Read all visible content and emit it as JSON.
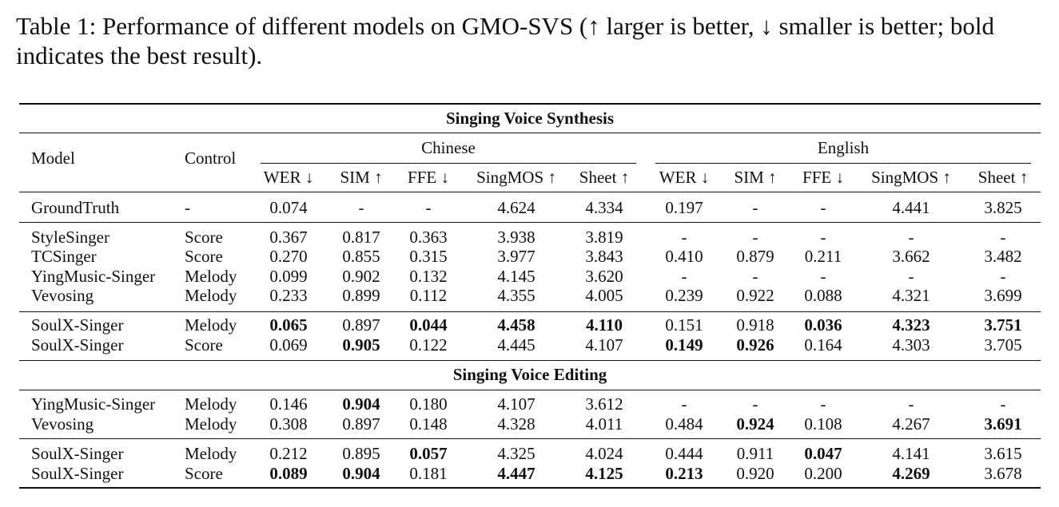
{
  "caption": "Table 1: Performance of different models on GMO-SVS (↑ larger is better, ↓ smaller is better; bold indicates the best result).",
  "table": {
    "section_synthesis": "Singing Voice Synthesis",
    "section_editing": "Singing Voice Editing",
    "header_model": "Model",
    "header_control": "Control",
    "lang_groups": [
      "Chinese",
      "English"
    ],
    "metrics": [
      "WER ↓",
      "SIM ↑",
      "FFE ↓",
      "SingMOS ↑",
      "Sheet ↑",
      "WER ↓",
      "SIM ↑",
      "FFE ↓",
      "SingMOS ↑",
      "Sheet ↑"
    ],
    "groundtruth": [
      {
        "model": "GroundTruth",
        "control": "-",
        "values": [
          "0.074",
          "-",
          "-",
          "4.624",
          "4.334",
          "0.197",
          "-",
          "-",
          "4.441",
          "3.825"
        ],
        "bold": []
      }
    ],
    "synthesis_baselines": [
      {
        "model": "StyleSinger",
        "control": "Score",
        "values": [
          "0.367",
          "0.817",
          "0.363",
          "3.938",
          "3.819",
          "-",
          "-",
          "-",
          "-",
          "-"
        ],
        "bold": []
      },
      {
        "model": "TCSinger",
        "control": "Score",
        "values": [
          "0.270",
          "0.855",
          "0.315",
          "3.977",
          "3.843",
          "0.410",
          "0.879",
          "0.211",
          "3.662",
          "3.482"
        ],
        "bold": []
      },
      {
        "model": "YingMusic-Singer",
        "control": "Melody",
        "values": [
          "0.099",
          "0.902",
          "0.132",
          "4.145",
          "3.620",
          "-",
          "-",
          "-",
          "-",
          "-"
        ],
        "bold": []
      },
      {
        "model": "Vevosing",
        "control": "Melody",
        "values": [
          "0.233",
          "0.899",
          "0.112",
          "4.355",
          "4.005",
          "0.239",
          "0.922",
          "0.088",
          "4.321",
          "3.699"
        ],
        "bold": []
      }
    ],
    "synthesis_ours": [
      {
        "model": "SoulX-Singer",
        "control": "Melody",
        "values": [
          "0.065",
          "0.897",
          "0.044",
          "4.458",
          "4.110",
          "0.151",
          "0.918",
          "0.036",
          "4.323",
          "3.751"
        ],
        "bold": [
          0,
          2,
          3,
          4,
          7,
          8,
          9
        ]
      },
      {
        "model": "SoulX-Singer",
        "control": "Score",
        "values": [
          "0.069",
          "0.905",
          "0.122",
          "4.445",
          "4.107",
          "0.149",
          "0.926",
          "0.164",
          "4.303",
          "3.705"
        ],
        "bold": [
          1,
          5,
          6
        ]
      }
    ],
    "editing_baselines": [
      {
        "model": "YingMusic-Singer",
        "control": "Melody",
        "values": [
          "0.146",
          "0.904",
          "0.180",
          "4.107",
          "3.612",
          "-",
          "-",
          "-",
          "-",
          "-"
        ],
        "bold": [
          1
        ]
      },
      {
        "model": "Vevosing",
        "control": "Melody",
        "values": [
          "0.308",
          "0.897",
          "0.148",
          "4.328",
          "4.011",
          "0.484",
          "0.924",
          "0.108",
          "4.267",
          "3.691"
        ],
        "bold": [
          6,
          9
        ]
      }
    ],
    "editing_ours": [
      {
        "model": "SoulX-Singer",
        "control": "Melody",
        "values": [
          "0.212",
          "0.895",
          "0.057",
          "4.325",
          "4.024",
          "0.444",
          "0.911",
          "0.047",
          "4.141",
          "3.615"
        ],
        "bold": [
          2,
          7
        ]
      },
      {
        "model": "SoulX-Singer",
        "control": "Score",
        "values": [
          "0.089",
          "0.904",
          "0.181",
          "4.447",
          "4.125",
          "0.213",
          "0.920",
          "0.200",
          "4.269",
          "3.678"
        ],
        "bold": [
          0,
          1,
          3,
          4,
          5,
          8
        ]
      }
    ]
  }
}
